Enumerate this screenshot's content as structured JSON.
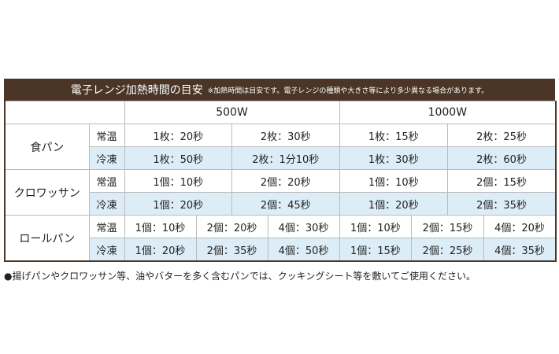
{
  "header": {
    "title": "電子レンジ加熱時間の目安",
    "note": "※加熱時間は目安です。電子レンジの種類や大きさ等により多少異なる場合があります。"
  },
  "table": {
    "columns": [
      "500W",
      "1000W"
    ],
    "rows": [
      {
        "name": "食パン",
        "entries": [
          {
            "temp": "常温",
            "cells": [
              [
                "1枚：20秒",
                "2枚：30秒"
              ],
              [
                "1枚：15秒",
                "2枚：25秒"
              ]
            ]
          },
          {
            "temp": "冷凍",
            "cells": [
              [
                "1枚：50秒",
                "2枚：1分10秒"
              ],
              [
                "1枚：30秒",
                "2枚：60秒"
              ]
            ]
          }
        ]
      },
      {
        "name": "クロワッサン",
        "entries": [
          {
            "temp": "常温",
            "cells": [
              [
                "1個：10秒",
                "2個：20秒"
              ],
              [
                "1個：10秒",
                "2個：15秒"
              ]
            ]
          },
          {
            "temp": "冷凍",
            "cells": [
              [
                "1個：20秒",
                "2個：45秒"
              ],
              [
                "1個：20秒",
                "2個：35秒"
              ]
            ]
          }
        ]
      },
      {
        "name": "ロールパン",
        "entries": [
          {
            "temp": "常温",
            "cells": [
              [
                "1個：10秒",
                "2個：20秒",
                "4個：30秒"
              ],
              [
                "1個：10秒",
                "2個：15秒",
                "4個：20秒"
              ]
            ]
          },
          {
            "temp": "冷凍",
            "cells": [
              [
                "1個：20秒",
                "2個：35秒",
                "4個：50秒"
              ],
              [
                "1個：15秒",
                "2個：25秒",
                "4個：35秒"
              ]
            ]
          }
        ]
      }
    ]
  },
  "footnote": "●揚げパンやクロワッサン等、油やバターを多く含むパンでは、クッキングシート等を敷いてご使用ください。"
}
